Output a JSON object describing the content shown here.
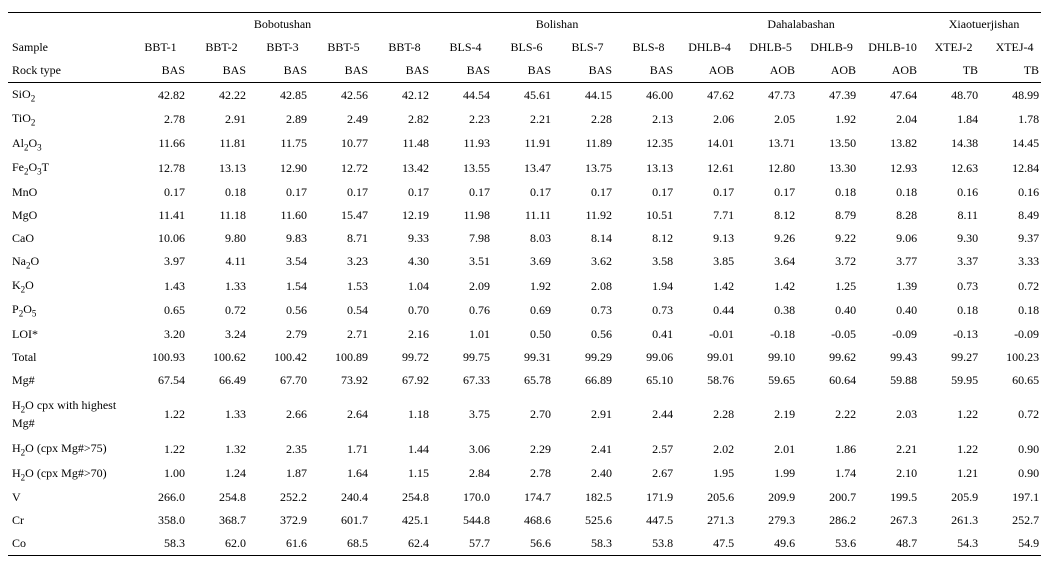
{
  "locations": [
    {
      "name": "Bobotushan",
      "span": 5
    },
    {
      "name": "Bolishan",
      "span": 4
    },
    {
      "name": "Dahalabashan",
      "span": 4
    },
    {
      "name": "Xiaotuerjishan",
      "span": 2
    }
  ],
  "sampleLabel": "Sample",
  "rockTypeLabel": "Rock type",
  "samples": [
    "BBT-1",
    "BBT-2",
    "BBT-3",
    "BBT-5",
    "BBT-8",
    "BLS-4",
    "BLS-6",
    "BLS-7",
    "BLS-8",
    "DHLB-4",
    "DHLB-5",
    "DHLB-9",
    "DHLB-10",
    "XTEJ-2",
    "XTEJ-4"
  ],
  "rockTypes": [
    "BAS",
    "BAS",
    "BAS",
    "BAS",
    "BAS",
    "BAS",
    "BAS",
    "BAS",
    "BAS",
    "AOB",
    "AOB",
    "AOB",
    "AOB",
    "TB",
    "TB"
  ],
  "rows": [
    {
      "label": "SiO2",
      "html": "SiO<sub>2</sub>",
      "vals": [
        "42.82",
        "42.22",
        "42.85",
        "42.56",
        "42.12",
        "44.54",
        "45.61",
        "44.15",
        "46.00",
        "47.62",
        "47.73",
        "47.39",
        "47.64",
        "48.70",
        "48.99"
      ]
    },
    {
      "label": "TiO2",
      "html": "TiO<sub>2</sub>",
      "vals": [
        "2.78",
        "2.91",
        "2.89",
        "2.49",
        "2.82",
        "2.23",
        "2.21",
        "2.28",
        "2.13",
        "2.06",
        "2.05",
        "1.92",
        "2.04",
        "1.84",
        "1.78"
      ]
    },
    {
      "label": "Al2O3",
      "html": "Al<sub>2</sub>O<sub>3</sub>",
      "vals": [
        "11.66",
        "11.81",
        "11.75",
        "10.77",
        "11.48",
        "11.93",
        "11.91",
        "11.89",
        "12.35",
        "14.01",
        "13.71",
        "13.50",
        "13.82",
        "14.38",
        "14.45"
      ]
    },
    {
      "label": "Fe2O3T",
      "html": "Fe<sub>2</sub>O<sub>3</sub>T",
      "vals": [
        "12.78",
        "13.13",
        "12.90",
        "12.72",
        "13.42",
        "13.55",
        "13.47",
        "13.75",
        "13.13",
        "12.61",
        "12.80",
        "13.30",
        "12.93",
        "12.63",
        "12.84"
      ]
    },
    {
      "label": "MnO",
      "html": "MnO",
      "vals": [
        "0.17",
        "0.18",
        "0.17",
        "0.17",
        "0.17",
        "0.17",
        "0.17",
        "0.17",
        "0.17",
        "0.17",
        "0.17",
        "0.18",
        "0.18",
        "0.16",
        "0.16"
      ]
    },
    {
      "label": "MgO",
      "html": "MgO",
      "vals": [
        "11.41",
        "11.18",
        "11.60",
        "15.47",
        "12.19",
        "11.98",
        "11.11",
        "11.92",
        "10.51",
        "7.71",
        "8.12",
        "8.79",
        "8.28",
        "8.11",
        "8.49"
      ]
    },
    {
      "label": "CaO",
      "html": "CaO",
      "vals": [
        "10.06",
        "9.80",
        "9.83",
        "8.71",
        "9.33",
        "7.98",
        "8.03",
        "8.14",
        "8.12",
        "9.13",
        "9.26",
        "9.22",
        "9.06",
        "9.30",
        "9.37"
      ]
    },
    {
      "label": "Na2O",
      "html": "Na<sub>2</sub>O",
      "vals": [
        "3.97",
        "4.11",
        "3.54",
        "3.23",
        "4.30",
        "3.51",
        "3.69",
        "3.62",
        "3.58",
        "3.85",
        "3.64",
        "3.72",
        "3.77",
        "3.37",
        "3.33"
      ]
    },
    {
      "label": "K2O",
      "html": "K<sub>2</sub>O",
      "vals": [
        "1.43",
        "1.33",
        "1.54",
        "1.53",
        "1.04",
        "2.09",
        "1.92",
        "2.08",
        "1.94",
        "1.42",
        "1.42",
        "1.25",
        "1.39",
        "0.73",
        "0.72"
      ]
    },
    {
      "label": "P2O5",
      "html": "P<sub>2</sub>O<sub>5</sub>",
      "vals": [
        "0.65",
        "0.72",
        "0.56",
        "0.54",
        "0.70",
        "0.76",
        "0.69",
        "0.73",
        "0.73",
        "0.44",
        "0.38",
        "0.40",
        "0.40",
        "0.18",
        "0.18"
      ]
    },
    {
      "label": "LOI*",
      "html": "LOI*",
      "vals": [
        "3.20",
        "3.24",
        "2.79",
        "2.71",
        "2.16",
        "1.01",
        "0.50",
        "0.56",
        "0.41",
        "-0.01",
        "-0.18",
        "-0.05",
        "-0.09",
        "-0.13",
        "-0.09"
      ]
    },
    {
      "label": "Total",
      "html": "Total",
      "vals": [
        "100.93",
        "100.62",
        "100.42",
        "100.89",
        "99.72",
        "99.75",
        "99.31",
        "99.29",
        "99.06",
        "99.01",
        "99.10",
        "99.62",
        "99.43",
        "99.27",
        "100.23"
      ]
    },
    {
      "label": "Mg#",
      "html": "Mg#",
      "vals": [
        "67.54",
        "66.49",
        "67.70",
        "73.92",
        "67.92",
        "67.33",
        "65.78",
        "66.89",
        "65.10",
        "58.76",
        "59.65",
        "60.64",
        "59.88",
        "59.95",
        "60.65"
      ]
    },
    {
      "label": "H2O cpx with highest Mg#",
      "html": "H<sub>2</sub>O cpx with highest Mg#",
      "multiline": true,
      "vals": [
        "1.22",
        "1.33",
        "2.66",
        "2.64",
        "1.18",
        "3.75",
        "2.70",
        "2.91",
        "2.44",
        "2.28",
        "2.19",
        "2.22",
        "2.03",
        "1.22",
        "0.72"
      ]
    },
    {
      "label": "H2O (cpx Mg#>75)",
      "html": "H<sub>2</sub>O (cpx Mg#&gt;75)",
      "vals": [
        "1.22",
        "1.32",
        "2.35",
        "1.71",
        "1.44",
        "3.06",
        "2.29",
        "2.41",
        "2.57",
        "2.02",
        "2.01",
        "1.86",
        "2.21",
        "1.22",
        "0.90"
      ]
    },
    {
      "label": "H2O (cpx Mg#>70)",
      "html": "H<sub>2</sub>O (cpx Mg#&gt;70)",
      "vals": [
        "1.00",
        "1.24",
        "1.87",
        "1.64",
        "1.15",
        "2.84",
        "2.78",
        "2.40",
        "2.67",
        "1.95",
        "1.99",
        "1.74",
        "2.10",
        "1.21",
        "0.90"
      ]
    },
    {
      "label": "V",
      "html": "V",
      "vals": [
        "266.0",
        "254.8",
        "252.2",
        "240.4",
        "254.8",
        "170.0",
        "174.7",
        "182.5",
        "171.9",
        "205.6",
        "209.9",
        "200.7",
        "199.5",
        "205.9",
        "197.1"
      ]
    },
    {
      "label": "Cr",
      "html": "Cr",
      "vals": [
        "358.0",
        "368.7",
        "372.9",
        "601.7",
        "425.1",
        "544.8",
        "468.6",
        "525.6",
        "447.5",
        "271.3",
        "279.3",
        "286.2",
        "267.3",
        "261.3",
        "252.7"
      ]
    },
    {
      "label": "Co",
      "html": "Co",
      "vals": [
        "58.3",
        "62.0",
        "61.6",
        "68.5",
        "62.4",
        "57.7",
        "56.6",
        "58.3",
        "53.8",
        "47.5",
        "49.6",
        "53.6",
        "48.7",
        "54.3",
        "54.9"
      ]
    }
  ]
}
